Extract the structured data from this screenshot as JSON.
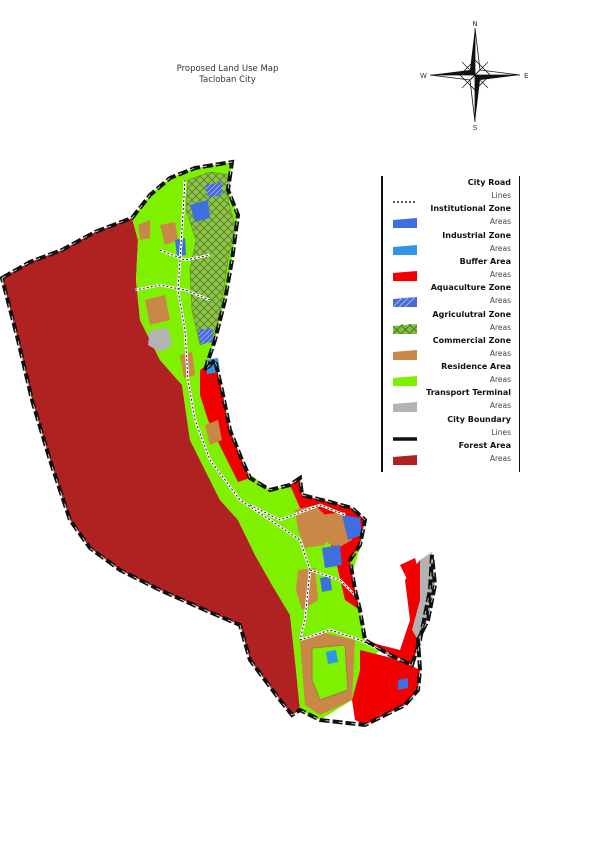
{
  "title": {
    "line1": "Proposed Land Use Map",
    "line2": "Tacloban City"
  },
  "compass": {
    "north": "N",
    "south": "S",
    "east": "E",
    "west": "W"
  },
  "legend": {
    "items": [
      {
        "name": "City Road",
        "kind": "Lines",
        "symbol": "dashed-line",
        "color": "#222222"
      },
      {
        "name": "Institutional Zone",
        "kind": "Areas",
        "symbol": "fill",
        "color": "#3d6fe0"
      },
      {
        "name": "Industrial Zone",
        "kind": "Areas",
        "symbol": "fill",
        "color": "#2e95e8"
      },
      {
        "name": "Buffer Area",
        "kind": "Areas",
        "symbol": "fill",
        "color": "#f20000"
      },
      {
        "name": "Aquaculture Zone",
        "kind": "Areas",
        "symbol": "hatch",
        "color": "#4a6bd6"
      },
      {
        "name": "Agriculutral Zone",
        "kind": "Areas",
        "symbol": "crosshatch",
        "color": "#7fbf3f"
      },
      {
        "name": "Commercial Zone",
        "kind": "Areas",
        "symbol": "fill",
        "color": "#c98848"
      },
      {
        "name": "Residence Area",
        "kind": "Areas",
        "symbol": "fill",
        "color": "#7ff000"
      },
      {
        "name": "Transport Terminal",
        "kind": "Areas",
        "symbol": "fill",
        "color": "#b3b3b3"
      },
      {
        "name": "City Boundary",
        "kind": "Lines",
        "symbol": "thick-line",
        "color": "#111111"
      },
      {
        "name": "Forest Area",
        "kind": "Areas",
        "symbol": "fill",
        "color": "#b02222"
      }
    ]
  },
  "colors": {
    "forest": "#b02222",
    "residence": "#7ff000",
    "buffer": "#f20000",
    "commercial": "#c98848",
    "agricultural": "#7fbf3f",
    "institutional": "#3d6fe0",
    "industrial": "#2e95e8",
    "transport": "#b3b3b3",
    "boundary": "#111111"
  }
}
